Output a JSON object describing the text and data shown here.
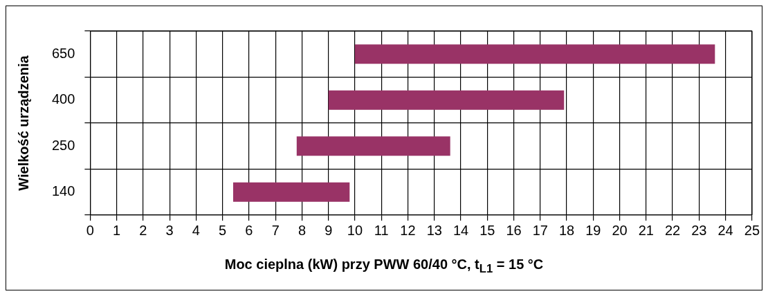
{
  "chart_data": {
    "type": "bar",
    "orientation": "horizontal",
    "xlabel": "Moc cieplna (kW) przy PWW 60/40 °C, t$_{L1}$ = 15 °C",
    "ylabel": "Wielkość urządzenia",
    "categories": [
      "650",
      "400",
      "250",
      "140"
    ],
    "base": [
      10,
      9,
      7.8,
      5.4
    ],
    "values": [
      13.6,
      8.9,
      5.8,
      4.4
    ],
    "color": "#993366",
    "xlim": [
      0,
      25
    ],
    "xticks": [
      0,
      1,
      2,
      3,
      4,
      5,
      6,
      7,
      8,
      9,
      10,
      11,
      12,
      13,
      14,
      15,
      16,
      17,
      18,
      19,
      20,
      21,
      22,
      23,
      24,
      25
    ],
    "grid": true,
    "legend": false
  }
}
